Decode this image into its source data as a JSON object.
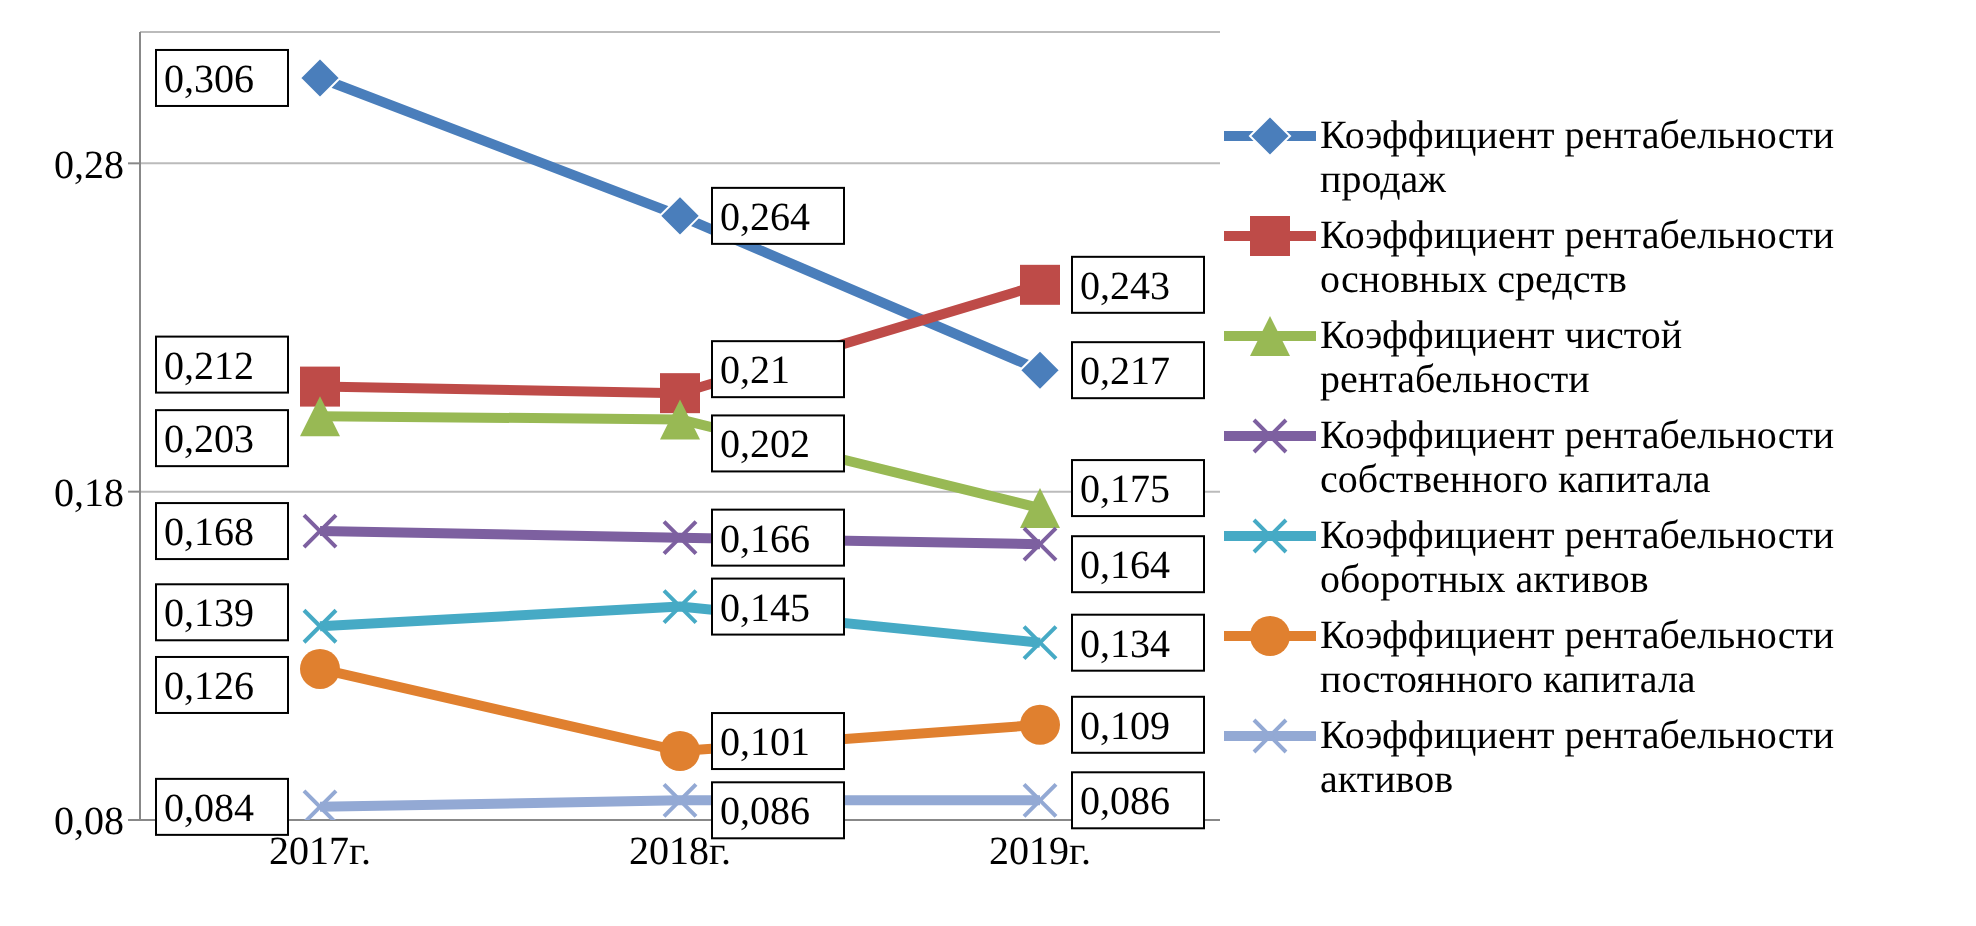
{
  "chart_data": {
    "type": "line",
    "categories": [
      "2017г.",
      "2018г.",
      "2019г."
    ],
    "ylim": [
      0.08,
      0.32
    ],
    "yticks": [
      {
        "value": 0.08,
        "label": "0,08"
      },
      {
        "value": 0.18,
        "label": "0,18"
      },
      {
        "value": 0.28,
        "label": "0,28"
      }
    ],
    "grid": "y",
    "legend": "right",
    "series": [
      {
        "name": "Коэффициент рентабельности продаж",
        "color": "#4a7ebb",
        "marker": "diamond",
        "values": [
          0.306,
          0.264,
          0.217
        ],
        "value_labels": [
          "0,306",
          "0,264",
          "0,217"
        ]
      },
      {
        "name": "Коэффициент рентабельности основных средств",
        "color": "#be4b48",
        "marker": "square",
        "values": [
          0.212,
          0.21,
          0.243
        ],
        "value_labels": [
          "0,212",
          "0,21",
          "0,243"
        ]
      },
      {
        "name": "Коэффициент чистой рентабельности",
        "color": "#98b954",
        "marker": "triangle",
        "values": [
          0.203,
          0.202,
          0.175
        ],
        "value_labels": [
          "0,203",
          "0,202",
          "0,175"
        ]
      },
      {
        "name": "Коэффициент рентабельности собственного капитала",
        "color": "#7d60a0",
        "marker": "cross",
        "values": [
          0.168,
          0.166,
          0.164
        ],
        "value_labels": [
          "0,168",
          "0,166",
          "0,164"
        ]
      },
      {
        "name": "Коэффициент рентабельности оборотных активов",
        "color": "#46aac5",
        "marker": "cross",
        "values": [
          0.139,
          0.145,
          0.134
        ],
        "value_labels": [
          "0,139",
          "0,145",
          "0,134"
        ]
      },
      {
        "name": "Коэффициент рентабельности постоянного капитала",
        "color": "#e0802f",
        "marker": "circle",
        "values": [
          0.126,
          0.101,
          0.109
        ],
        "value_labels": [
          "0,126",
          "0,101",
          "0,109"
        ]
      },
      {
        "name": "Коэффициент рентабельности активов",
        "color": "#93a9d4",
        "marker": "cross",
        "values": [
          0.084,
          0.086,
          0.086
        ],
        "value_labels": [
          "0,084",
          "0,086",
          "0,086"
        ]
      }
    ]
  }
}
